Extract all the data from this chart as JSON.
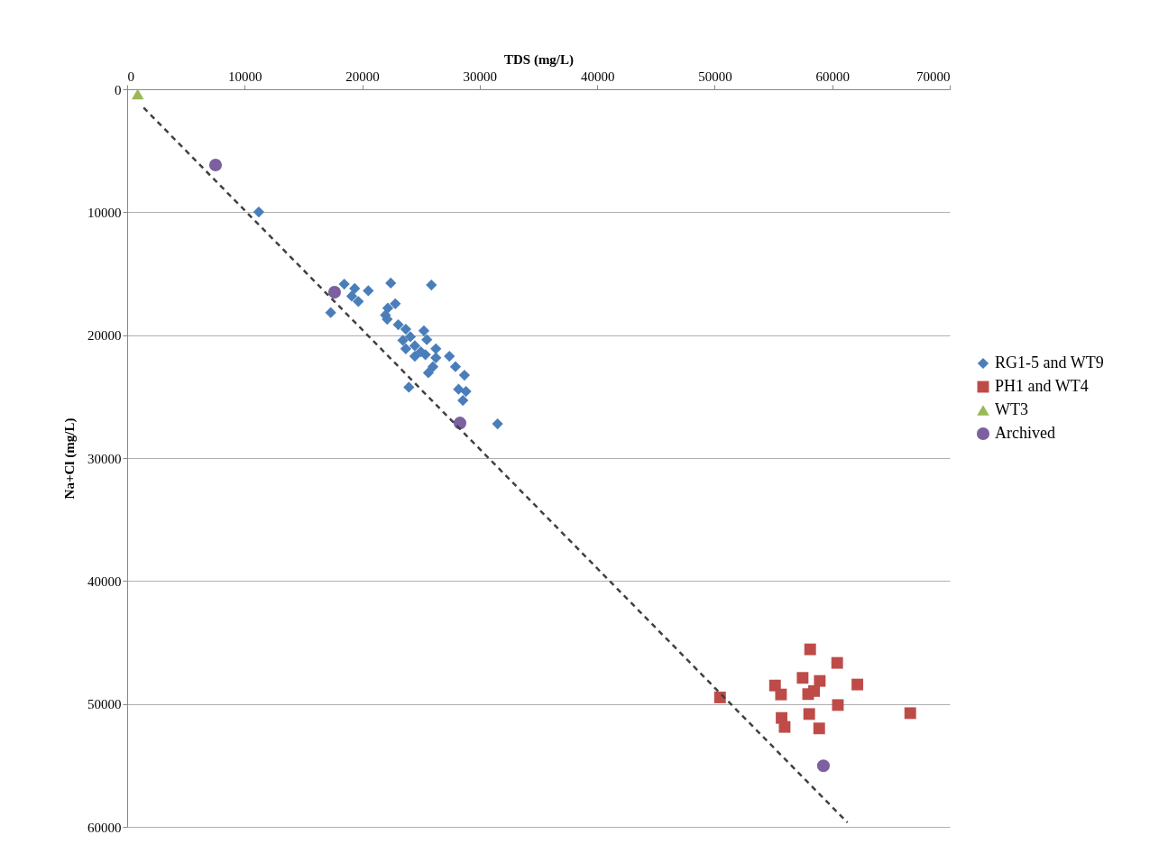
{
  "chart_data": {
    "type": "scatter",
    "xlabel": "TDS (mg/L)",
    "ylabel": "Na+Cl (mg/L)",
    "xlim": [
      0,
      70000
    ],
    "xticks": [
      0,
      10000,
      20000,
      30000,
      40000,
      50000,
      60000,
      70000
    ],
    "ylim": [
      60000,
      0
    ],
    "yticks": [
      0,
      10000,
      20000,
      30000,
      40000,
      50000,
      60000
    ],
    "grid": "y",
    "legend": "right",
    "series": [
      {
        "name": "RG1-5 and WT9",
        "color": "#4a7ebb",
        "marker": "diamond",
        "x": [
          11200,
          18470,
          19360,
          20520,
          19110,
          19670,
          17320,
          22430,
          25890,
          22820,
          22180,
          21980,
          22130,
          23070,
          23710,
          25250,
          23460,
          24100,
          25500,
          23710,
          24480,
          26270,
          24480,
          25380,
          26270,
          27420,
          26020,
          25630,
          27940,
          28700,
          23970,
          28200,
          28830,
          28570,
          31520,
          24990
        ],
        "values": [
          9980,
          15850,
          16210,
          16390,
          16830,
          17260,
          18170,
          15770,
          15920,
          17440,
          17800,
          18370,
          18710,
          19150,
          19520,
          19640,
          20420,
          20130,
          20370,
          21110,
          20860,
          21110,
          21720,
          21590,
          21840,
          21720,
          22570,
          23060,
          22570,
          23260,
          24240,
          24400,
          24580,
          25310,
          27220,
          21350
        ]
      },
      {
        "name": "PH1 and WT4",
        "color": "#be4b48",
        "marker": "square",
        "x": [
          58120,
          60420,
          55130,
          57480,
          58940,
          62140,
          55640,
          57950,
          58450,
          50450,
          60480,
          55690,
          58040,
          55950,
          58890,
          66640
        ],
        "values": [
          45560,
          46660,
          48500,
          47880,
          48130,
          48420,
          49230,
          49200,
          48950,
          49470,
          50090,
          51140,
          50820,
          51870,
          51990,
          50750
        ]
      },
      {
        "name": "WT3",
        "color": "#98b954",
        "marker": "triangle",
        "x": [
          900
        ],
        "values": [
          400
        ]
      },
      {
        "name": "Archived",
        "color": "#7d60a0",
        "marker": "circle",
        "x": [
          7520,
          17650,
          28320,
          59250
        ],
        "values": [
          6160,
          16510,
          27150,
          55030
        ]
      },
      {
        "type": "line",
        "color": "#404040",
        "line_style": "dashed",
        "marker": "none",
        "x": [
          1400,
          61300
        ],
        "values": [
          1500,
          59650
        ]
      }
    ]
  }
}
